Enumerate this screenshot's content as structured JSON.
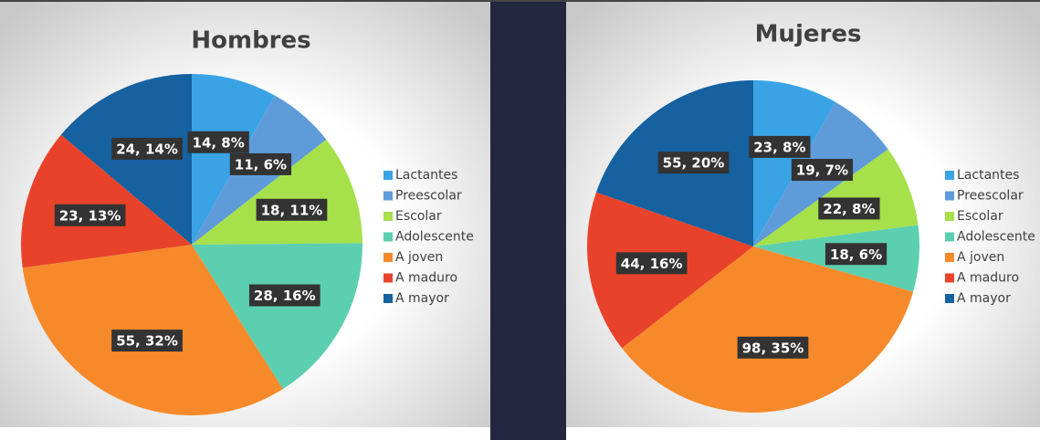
{
  "chart_data": [
    {
      "type": "pie",
      "title": "Hombres",
      "categories": [
        "Lactantes",
        "Preescolar",
        "Escolar",
        "Adolescente",
        "A joven",
        "A maduro",
        "A mayor"
      ],
      "values": [
        14,
        11,
        18,
        28,
        55,
        23,
        24
      ],
      "value_labels": [
        "14, 8%",
        "11, 6%",
        "18, 11%",
        "28, 16%",
        "55, 32%",
        "23, 13%",
        "24, 14%"
      ],
      "colors": [
        "#3aa3e6",
        "#5f9bd8",
        "#a6e04a",
        "#5ccfb0",
        "#f68a2b",
        "#e8432a",
        "#1661a0"
      ]
    },
    {
      "type": "pie",
      "title": "Mujeres",
      "categories": [
        "Lactantes",
        "Preescolar",
        "Escolar",
        "Adolescente",
        "A joven",
        "A maduro",
        "A mayor"
      ],
      "values": [
        23,
        19,
        22,
        18,
        98,
        44,
        55
      ],
      "value_labels": [
        "23, 8%",
        "19, 7%",
        "22, 8%",
        "18, 6%",
        "98, 35%",
        "44, 16%",
        "55, 20%"
      ],
      "colors": [
        "#3aa3e6",
        "#5f9bd8",
        "#a6e04a",
        "#5ccfb0",
        "#f68a2b",
        "#e8432a",
        "#1661a0"
      ]
    }
  ]
}
